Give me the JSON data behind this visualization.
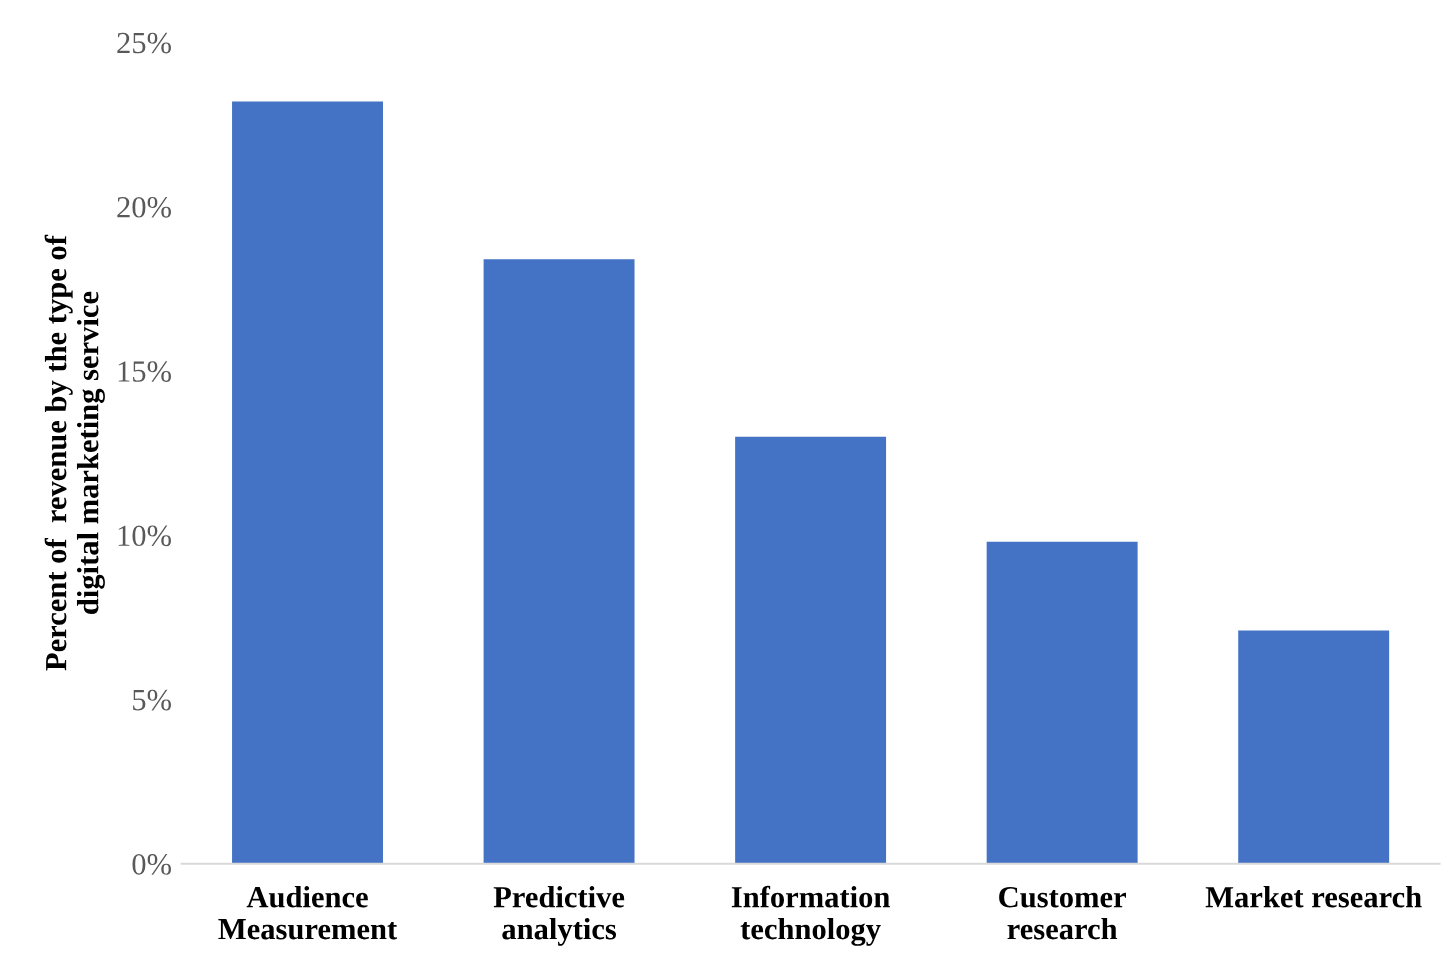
{
  "chart_data": {
    "type": "bar",
    "ylabel": "Percent of  revenue by the type of\ndigital marketing service",
    "categories": [
      "Audience\nMeasurement",
      "Predictive\nanalytics",
      "Information\ntechnology",
      "Customer\nresearch",
      "Market research"
    ],
    "values": [
      23.2,
      18.4,
      13.0,
      9.8,
      7.1
    ],
    "color": "#4472c4",
    "ylim": [
      0,
      25
    ],
    "yticks": [
      {
        "value": 0,
        "label": "0%"
      },
      {
        "value": 5,
        "label": "5%"
      },
      {
        "value": 10,
        "label": "10%"
      },
      {
        "value": 15,
        "label": "15%"
      },
      {
        "value": 20,
        "label": "20%"
      },
      {
        "value": 25,
        "label": "25%"
      }
    ],
    "grid": false,
    "legend": false
  }
}
